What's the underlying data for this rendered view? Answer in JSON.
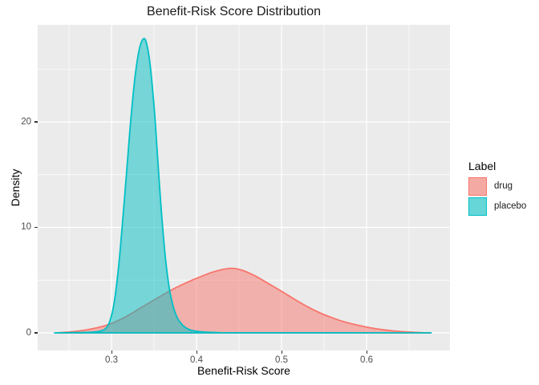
{
  "chart_data": {
    "type": "area",
    "title": "Benefit-Risk Score Distribution",
    "xlabel": "Benefit-Risk Score",
    "ylabel": "Density",
    "xlim": [
      0.2132,
      0.6981
    ],
    "ylim": [
      -1.673,
      29.2
    ],
    "grid": true,
    "panel_background": "#EBEBEB",
    "grid_color": "#FFFFFF",
    "tick_color": "#333333",
    "tick_label_color": "#4D4D4D",
    "x_ticks": [
      {
        "value": 0.3,
        "label": "0.3"
      },
      {
        "value": 0.4,
        "label": "0.4"
      },
      {
        "value": 0.5,
        "label": "0.5"
      },
      {
        "value": 0.6,
        "label": "0.6"
      }
    ],
    "x_minor_ticks": [
      0.25,
      0.35,
      0.45,
      0.55,
      0.65
    ],
    "y_ticks": [
      {
        "value": 0,
        "label": "0"
      },
      {
        "value": 10,
        "label": "10"
      },
      {
        "value": 20,
        "label": "20"
      }
    ],
    "y_minor_ticks": [
      5,
      15,
      25
    ],
    "legend": {
      "title": "Label",
      "position": "right"
    },
    "series": [
      {
        "name": "drug",
        "stroke": "#F8766D",
        "fill": "rgba(248,118,109,0.5)",
        "legend_fill": "#F5A9A3",
        "peak": {
          "x": 0.44,
          "density": 6.1
        },
        "points": [
          [
            0.236,
            0
          ],
          [
            0.255,
            0.12
          ],
          [
            0.275,
            0.35
          ],
          [
            0.295,
            0.75
          ],
          [
            0.315,
            1.45
          ],
          [
            0.335,
            2.4
          ],
          [
            0.355,
            3.35
          ],
          [
            0.375,
            4.25
          ],
          [
            0.395,
            5.0
          ],
          [
            0.415,
            5.65
          ],
          [
            0.43,
            6.0
          ],
          [
            0.442,
            6.12
          ],
          [
            0.455,
            5.9
          ],
          [
            0.47,
            5.35
          ],
          [
            0.485,
            4.65
          ],
          [
            0.5,
            3.95
          ],
          [
            0.515,
            3.2
          ],
          [
            0.53,
            2.5
          ],
          [
            0.545,
            1.9
          ],
          [
            0.56,
            1.42
          ],
          [
            0.575,
            1.02
          ],
          [
            0.59,
            0.72
          ],
          [
            0.605,
            0.47
          ],
          [
            0.62,
            0.29
          ],
          [
            0.635,
            0.16
          ],
          [
            0.65,
            0.08
          ],
          [
            0.663,
            0.03
          ],
          [
            0.675,
            0
          ]
        ]
      },
      {
        "name": "placebo",
        "stroke": "#00BFC4",
        "fill": "rgba(0,191,196,0.5)",
        "legend_fill": "#66D6D9",
        "peak": {
          "x": 0.338,
          "density": 27.9
        },
        "points": [
          [
            0.233,
            0
          ],
          [
            0.255,
            0.02
          ],
          [
            0.275,
            0.06
          ],
          [
            0.286,
            0.15
          ],
          [
            0.293,
            0.4
          ],
          [
            0.298,
            1.1
          ],
          [
            0.303,
            2.8
          ],
          [
            0.308,
            6.0
          ],
          [
            0.313,
            10.5
          ],
          [
            0.318,
            15.5
          ],
          [
            0.323,
            20.5
          ],
          [
            0.328,
            24.5
          ],
          [
            0.333,
            27.0
          ],
          [
            0.338,
            27.9
          ],
          [
            0.342,
            27.2
          ],
          [
            0.346,
            25.0
          ],
          [
            0.351,
            20.5
          ],
          [
            0.356,
            14.5
          ],
          [
            0.361,
            9.2
          ],
          [
            0.366,
            5.3
          ],
          [
            0.371,
            3.0
          ],
          [
            0.377,
            1.5
          ],
          [
            0.384,
            0.7
          ],
          [
            0.392,
            0.3
          ],
          [
            0.405,
            0.1
          ],
          [
            0.425,
            0.03
          ],
          [
            0.45,
            0.01
          ],
          [
            0.676,
            0
          ]
        ]
      }
    ]
  }
}
